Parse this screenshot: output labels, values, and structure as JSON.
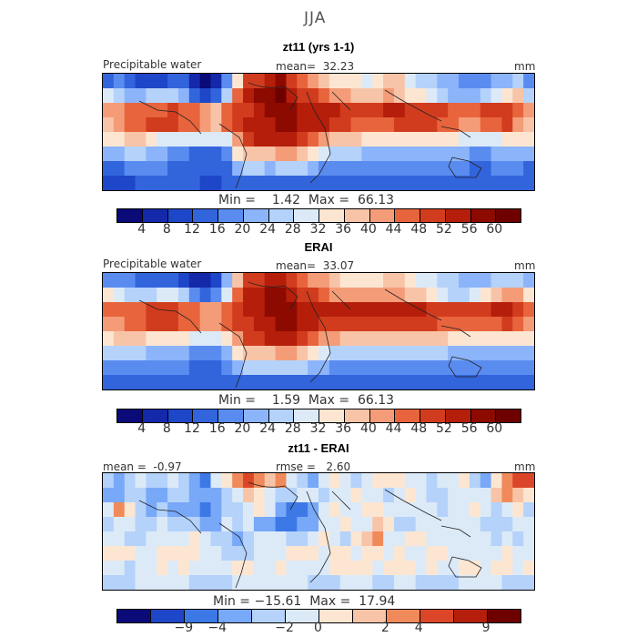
{
  "chart_data": [
    {
      "type": "heatmap",
      "season": "JJA",
      "title": "zt11 (yrs 1-1)",
      "variable_label": "Precipitable water",
      "units": "mm",
      "stats": {
        "mean_label": "mean=",
        "mean": "32.23",
        "min_label": "Min =",
        "min": "1.42",
        "max_label": "Max =",
        "max": "66.13"
      },
      "colorbar": {
        "ticks": [
          "4",
          "8",
          "12",
          "16",
          "20",
          "24",
          "28",
          "32",
          "36",
          "40",
          "44",
          "48",
          "52",
          "56",
          "60"
        ],
        "colors": [
          "#0a0a78",
          "#1428aa",
          "#1e46c8",
          "#3264dc",
          "#5a8cf0",
          "#8cb4fa",
          "#b4d2fa",
          "#dceaf8",
          "#fce6d2",
          "#f8c4a8",
          "#f49c78",
          "#e8643c",
          "#d23c1e",
          "#b41e0a",
          "#8c0a00",
          "#6e0000"
        ]
      },
      "pattern": [
        [
          3,
          4,
          3,
          2,
          2,
          2,
          3,
          3,
          1,
          0,
          1,
          4,
          8,
          12,
          12,
          13,
          14,
          12,
          11,
          10,
          9,
          8,
          8,
          8,
          7,
          8,
          9,
          9,
          7,
          6,
          6,
          5,
          5,
          4,
          4,
          4,
          5,
          5,
          6,
          4
        ],
        [
          7,
          6,
          5,
          5,
          6,
          6,
          6,
          5,
          3,
          2,
          3,
          6,
          11,
          13,
          14,
          14,
          15,
          13,
          12,
          12,
          11,
          10,
          10,
          9,
          9,
          9,
          10,
          9,
          8,
          8,
          7,
          6,
          5,
          5,
          5,
          6,
          7,
          8,
          9,
          6
        ],
        [
          10,
          10,
          11,
          11,
          11,
          11,
          12,
          11,
          11,
          10,
          9,
          11,
          12,
          12,
          13,
          14,
          14,
          14,
          13,
          13,
          13,
          13,
          12,
          12,
          12,
          12,
          13,
          13,
          12,
          12,
          12,
          12,
          11,
          11,
          11,
          12,
          12,
          12,
          11,
          10
        ],
        [
          9,
          10,
          11,
          11,
          12,
          12,
          12,
          11,
          11,
          10,
          9,
          11,
          12,
          13,
          13,
          13,
          14,
          14,
          13,
          13,
          13,
          12,
          12,
          11,
          11,
          11,
          11,
          12,
          12,
          12,
          12,
          11,
          11,
          10,
          10,
          11,
          11,
          12,
          10,
          9
        ],
        [
          8,
          8,
          9,
          9,
          8,
          7,
          7,
          7,
          7,
          7,
          7,
          7,
          10,
          12,
          13,
          13,
          13,
          13,
          12,
          11,
          10,
          9,
          9,
          9,
          8,
          8,
          8,
          8,
          8,
          8,
          8,
          8,
          8,
          7,
          7,
          7,
          7,
          8,
          8,
          8
        ],
        [
          5,
          5,
          6,
          6,
          5,
          5,
          4,
          4,
          3,
          3,
          3,
          4,
          8,
          9,
          9,
          9,
          10,
          10,
          9,
          8,
          7,
          6,
          6,
          6,
          5,
          5,
          5,
          5,
          5,
          5,
          5,
          5,
          5,
          5,
          4,
          4,
          5,
          5,
          5,
          5
        ],
        [
          3,
          3,
          4,
          4,
          4,
          4,
          3,
          3,
          3,
          3,
          3,
          3,
          5,
          6,
          6,
          5,
          6,
          6,
          6,
          5,
          4,
          4,
          4,
          4,
          4,
          4,
          4,
          4,
          4,
          4,
          4,
          4,
          4,
          4,
          3,
          3,
          4,
          4,
          4,
          3
        ],
        [
          2,
          2,
          2,
          3,
          3,
          3,
          3,
          3,
          3,
          2,
          2,
          3,
          3,
          3,
          3,
          3,
          3,
          3,
          3,
          3,
          3,
          3,
          3,
          3,
          3,
          3,
          3,
          3,
          3,
          3,
          3,
          3,
          3,
          3,
          3,
          3,
          3,
          3,
          3,
          3
        ]
      ]
    },
    {
      "type": "heatmap",
      "title": "ERAI",
      "variable_label": "Precipitable water",
      "units": "mm",
      "stats": {
        "mean_label": "mean=",
        "mean": "33.07",
        "min_label": "Min =",
        "min": "1.59",
        "max_label": "Max =",
        "max": "66.13"
      },
      "colorbar": {
        "ticks": [
          "4",
          "8",
          "12",
          "16",
          "20",
          "24",
          "28",
          "32",
          "36",
          "40",
          "44",
          "48",
          "52",
          "56",
          "60"
        ],
        "colors": [
          "#0a0a78",
          "#1428aa",
          "#1e46c8",
          "#3264dc",
          "#5a8cf0",
          "#8cb4fa",
          "#b4d2fa",
          "#dceaf8",
          "#fce6d2",
          "#f8c4a8",
          "#f49c78",
          "#e8643c",
          "#d23c1e",
          "#b41e0a",
          "#8c0a00",
          "#6e0000"
        ]
      },
      "pattern": [
        [
          4,
          4,
          4,
          3,
          3,
          3,
          3,
          2,
          1,
          1,
          2,
          5,
          9,
          12,
          12,
          13,
          13,
          12,
          11,
          10,
          10,
          9,
          8,
          8,
          8,
          8,
          9,
          9,
          8,
          7,
          7,
          6,
          6,
          5,
          5,
          5,
          6,
          6,
          6,
          5
        ],
        [
          8,
          7,
          6,
          6,
          6,
          7,
          7,
          6,
          4,
          3,
          4,
          7,
          11,
          13,
          13,
          14,
          14,
          13,
          12,
          12,
          11,
          10,
          10,
          10,
          10,
          10,
          10,
          10,
          9,
          9,
          8,
          7,
          6,
          6,
          7,
          8,
          9,
          10,
          10,
          8
        ],
        [
          11,
          11,
          11,
          11,
          12,
          12,
          12,
          11,
          11,
          10,
          10,
          11,
          12,
          13,
          13,
          14,
          14,
          14,
          13,
          13,
          13,
          13,
          13,
          13,
          13,
          13,
          13,
          13,
          13,
          13,
          12,
          12,
          12,
          12,
          12,
          12,
          13,
          13,
          12,
          11
        ],
        [
          10,
          10,
          11,
          11,
          12,
          12,
          12,
          11,
          11,
          10,
          10,
          11,
          12,
          12,
          13,
          13,
          14,
          14,
          13,
          13,
          12,
          12,
          12,
          12,
          12,
          12,
          12,
          12,
          12,
          12,
          12,
          11,
          11,
          11,
          11,
          11,
          11,
          12,
          11,
          10
        ],
        [
          8,
          9,
          9,
          9,
          8,
          8,
          8,
          8,
          7,
          7,
          7,
          8,
          10,
          12,
          12,
          13,
          13,
          13,
          12,
          11,
          10,
          10,
          9,
          9,
          9,
          9,
          9,
          9,
          9,
          9,
          9,
          9,
          8,
          8,
          8,
          8,
          8,
          8,
          8,
          8
        ],
        [
          6,
          6,
          6,
          6,
          5,
          5,
          5,
          5,
          4,
          4,
          4,
          5,
          8,
          9,
          9,
          9,
          10,
          10,
          9,
          8,
          7,
          6,
          6,
          6,
          6,
          6,
          6,
          6,
          6,
          6,
          6,
          6,
          5,
          5,
          5,
          5,
          5,
          5,
          5,
          5
        ],
        [
          4,
          4,
          4,
          4,
          4,
          4,
          4,
          4,
          3,
          3,
          3,
          4,
          5,
          6,
          6,
          6,
          6,
          6,
          6,
          5,
          5,
          4,
          4,
          4,
          4,
          4,
          4,
          4,
          4,
          4,
          4,
          4,
          4,
          4,
          4,
          4,
          4,
          4,
          4,
          4
        ],
        [
          3,
          3,
          3,
          3,
          3,
          3,
          3,
          3,
          3,
          3,
          3,
          3,
          3,
          3,
          3,
          3,
          3,
          3,
          3,
          3,
          3,
          3,
          3,
          3,
          3,
          3,
          3,
          3,
          3,
          3,
          3,
          3,
          3,
          3,
          3,
          3,
          3,
          3,
          3,
          3
        ]
      ]
    },
    {
      "type": "heatmap",
      "title": "zt11 - ERAI",
      "units": "mm",
      "stats": {
        "mean_label": "mean =",
        "mean": "-0.97",
        "rmse_label": "rmse =",
        "rmse": "2.60",
        "min_label": "Min =",
        "min": "−15.61",
        "max_label": "Max =",
        "max": "17.94"
      },
      "colorbar": {
        "ticks": [
          "−9",
          "−4",
          "−2",
          "0",
          "2",
          "4",
          "9"
        ],
        "colors": [
          "#0a0a78",
          "#1e46c8",
          "#3c78e6",
          "#78a8f8",
          "#b4d2fa",
          "#dceaf8",
          "#fce6d2",
          "#f8c4a8",
          "#f08a5a",
          "#dc4628",
          "#b41e0a",
          "#6e0000"
        ]
      },
      "pattern": [
        [
          4,
          3,
          4,
          5,
          4,
          4,
          5,
          4,
          3,
          2,
          5,
          6,
          8,
          9,
          8,
          7,
          8,
          5,
          4,
          3,
          5,
          6,
          5,
          4,
          5,
          6,
          6,
          6,
          5,
          5,
          4,
          5,
          5,
          6,
          4,
          3,
          6,
          8,
          9,
          9
        ],
        [
          3,
          3,
          4,
          4,
          3,
          3,
          4,
          4,
          3,
          3,
          3,
          4,
          5,
          7,
          6,
          5,
          4,
          4,
          5,
          5,
          4,
          5,
          5,
          6,
          5,
          5,
          4,
          5,
          6,
          5,
          4,
          4,
          5,
          5,
          5,
          5,
          7,
          8,
          7,
          6
        ],
        [
          5,
          8,
          6,
          4,
          3,
          4,
          3,
          3,
          3,
          2,
          3,
          4,
          4,
          5,
          6,
          5,
          3,
          2,
          2,
          3,
          5,
          6,
          5,
          5,
          6,
          6,
          5,
          5,
          5,
          5,
          5,
          4,
          5,
          5,
          6,
          5,
          4,
          5,
          6,
          4
        ],
        [
          4,
          5,
          5,
          4,
          4,
          5,
          4,
          4,
          4,
          3,
          3,
          5,
          4,
          5,
          3,
          3,
          2,
          2,
          3,
          3,
          5,
          5,
          6,
          5,
          5,
          7,
          6,
          4,
          4,
          5,
          5,
          5,
          5,
          5,
          5,
          4,
          4,
          4,
          5,
          5
        ],
        [
          5,
          5,
          4,
          4,
          5,
          5,
          5,
          5,
          6,
          5,
          4,
          4,
          3,
          4,
          5,
          5,
          5,
          4,
          4,
          5,
          6,
          5,
          4,
          6,
          7,
          8,
          5,
          5,
          6,
          6,
          5,
          5,
          5,
          5,
          5,
          5,
          4,
          5,
          4,
          5
        ],
        [
          6,
          6,
          6,
          5,
          5,
          6,
          6,
          6,
          6,
          5,
          5,
          4,
          4,
          4,
          5,
          5,
          5,
          6,
          6,
          6,
          5,
          6,
          6,
          5,
          6,
          6,
          5,
          6,
          5,
          5,
          6,
          6,
          5,
          5,
          5,
          5,
          5,
          6,
          5,
          5
        ],
        [
          5,
          5,
          4,
          5,
          5,
          6,
          5,
          6,
          5,
          5,
          5,
          5,
          6,
          6,
          5,
          5,
          6,
          5,
          5,
          5,
          5,
          6,
          6,
          6,
          6,
          5,
          6,
          6,
          6,
          5,
          6,
          5,
          5,
          6,
          6,
          5,
          6,
          6,
          5,
          6
        ],
        [
          4,
          4,
          4,
          5,
          5,
          5,
          5,
          5,
          4,
          4,
          4,
          4,
          5,
          5,
          5,
          5,
          5,
          5,
          5,
          4,
          4,
          4,
          5,
          5,
          5,
          4,
          4,
          5,
          5,
          4,
          4,
          4,
          4,
          5,
          5,
          5,
          5,
          4,
          4,
          4
        ]
      ]
    }
  ]
}
